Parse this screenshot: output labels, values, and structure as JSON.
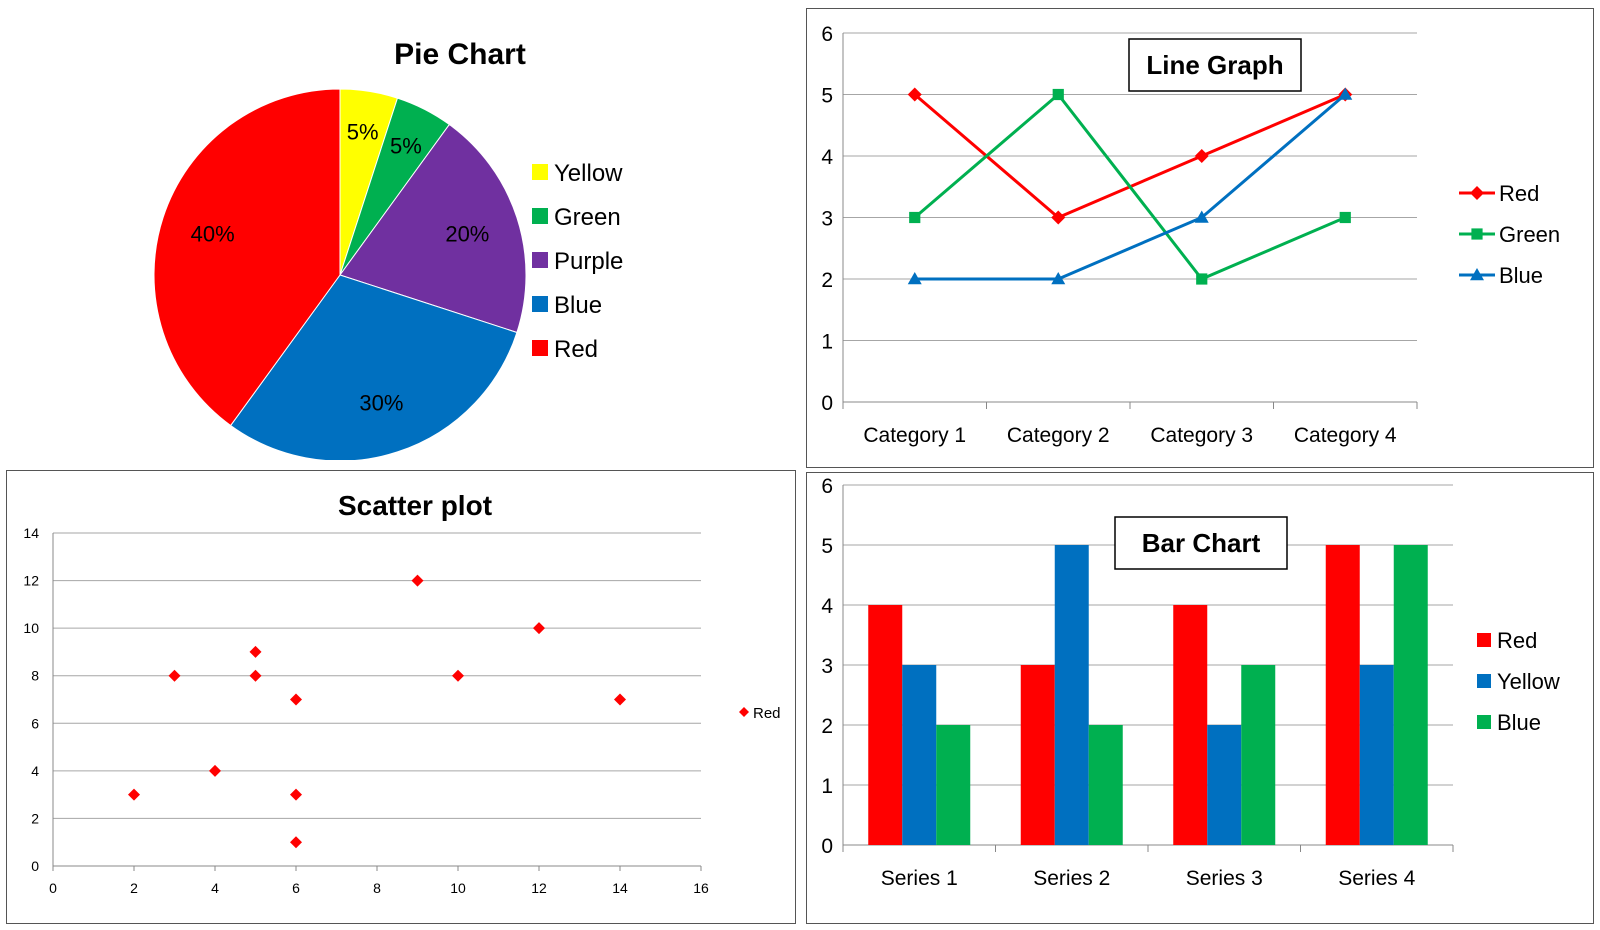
{
  "colors": {
    "red": "#ff0000",
    "yellow": "#ffff00",
    "green": "#00b050",
    "purple": "#7030a0",
    "blue": "#0070c0",
    "grid": "#a6a6a6",
    "frame": "#555555"
  },
  "chart_data": [
    {
      "type": "pie",
      "title": "Pie Chart",
      "slices": [
        {
          "name": "Yellow",
          "value": 5,
          "label": "5%",
          "color": "#ffff00"
        },
        {
          "name": "Green",
          "value": 5,
          "label": "5%",
          "color": "#00b050"
        },
        {
          "name": "Purple",
          "value": 20,
          "label": "20%",
          "color": "#7030a0"
        },
        {
          "name": "Blue",
          "value": 30,
          "label": "30%",
          "color": "#0070c0"
        },
        {
          "name": "Red",
          "value": 40,
          "label": "40%",
          "color": "#ff0000"
        }
      ],
      "legend": "right"
    },
    {
      "type": "line",
      "title": "Line Graph",
      "categories": [
        "Category 1",
        "Category 2",
        "Category 3",
        "Category 4"
      ],
      "series": [
        {
          "name": "Red",
          "values": [
            5,
            3,
            4,
            5
          ],
          "color": "#ff0000",
          "marker": "diamond"
        },
        {
          "name": "Green",
          "values": [
            3,
            5,
            2,
            3
          ],
          "color": "#00b050",
          "marker": "square"
        },
        {
          "name": "Blue",
          "values": [
            2,
            2,
            3,
            5
          ],
          "color": "#0070c0",
          "marker": "triangle"
        }
      ],
      "ylim": [
        0,
        6
      ],
      "yticks": [
        0,
        1,
        2,
        3,
        4,
        5,
        6
      ],
      "grid": true,
      "legend": "right"
    },
    {
      "type": "scatter",
      "title": "Scatter plot",
      "series": [
        {
          "name": "Red",
          "color": "#ff0000",
          "marker": "diamond",
          "points": [
            [
              2,
              3
            ],
            [
              3,
              8
            ],
            [
              4,
              4
            ],
            [
              5,
              9
            ],
            [
              5,
              8
            ],
            [
              6,
              7
            ],
            [
              6,
              3
            ],
            [
              6,
              1
            ],
            [
              9,
              12
            ],
            [
              10,
              8
            ],
            [
              12,
              10
            ],
            [
              14,
              7
            ]
          ]
        }
      ],
      "xlim": [
        0,
        16
      ],
      "ylim": [
        0,
        14
      ],
      "xticks": [
        0,
        2,
        4,
        6,
        8,
        10,
        12,
        14,
        16
      ],
      "yticks": [
        0,
        2,
        4,
        6,
        8,
        10,
        12,
        14
      ],
      "grid": true,
      "legend": "right"
    },
    {
      "type": "bar",
      "title": "Bar Chart",
      "categories": [
        "Series 1",
        "Series 2",
        "Series 3",
        "Series 4"
      ],
      "series": [
        {
          "name": "Red",
          "values": [
            4,
            3,
            4,
            5
          ],
          "color": "#ff0000"
        },
        {
          "name": "Yellow",
          "values": [
            3,
            5,
            2,
            3
          ],
          "color": "#0070c0"
        },
        {
          "name": "Blue",
          "values": [
            2,
            2,
            3,
            5
          ],
          "color": "#00b050"
        }
      ],
      "ylim": [
        0,
        6
      ],
      "yticks": [
        0,
        1,
        2,
        3,
        4,
        5,
        6
      ],
      "grid": true,
      "legend": "right"
    }
  ]
}
